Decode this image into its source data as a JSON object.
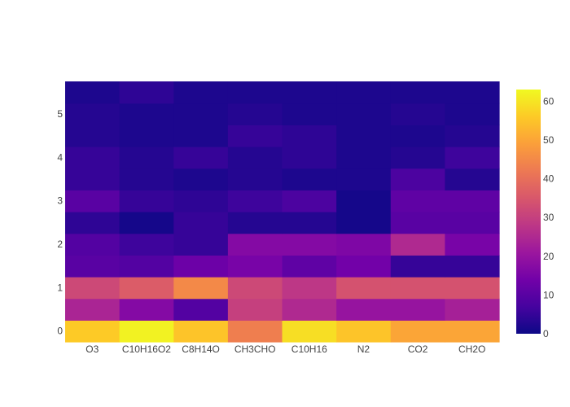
{
  "chart_data": {
    "type": "heatmap",
    "x_categories": [
      "O3",
      "C10H16O2",
      "C8H14O",
      "CH3CHO",
      "C10H16",
      "N2",
      "CO2",
      "CH2O"
    ],
    "y_values": [
      0,
      0.5,
      1,
      1.5,
      2,
      2.5,
      3,
      3.5,
      4,
      4.5,
      5,
      5.5
    ],
    "y_ticks": [
      "0",
      "1",
      "2",
      "3",
      "4",
      "5"
    ],
    "z": [
      [
        56,
        62,
        55,
        43,
        59,
        55,
        50,
        50
      ],
      [
        24,
        17,
        9,
        30,
        25,
        20,
        20,
        23
      ],
      [
        32,
        36,
        45,
        32,
        28,
        34,
        34,
        34
      ],
      [
        10,
        9,
        13,
        15,
        11,
        14,
        5,
        5
      ],
      [
        9,
        6,
        5,
        17,
        17,
        16,
        25,
        15
      ],
      [
        4,
        1,
        5,
        3,
        3,
        1,
        10,
        10
      ],
      [
        10,
        5,
        4,
        6,
        8,
        1,
        11,
        11
      ],
      [
        5,
        3,
        2,
        3,
        2,
        2,
        8,
        3
      ],
      [
        5,
        3,
        5,
        3,
        4,
        2,
        3,
        6
      ],
      [
        3,
        2,
        2,
        5,
        4,
        2,
        2,
        3
      ],
      [
        3,
        2,
        2,
        3,
        2,
        2,
        3,
        2
      ],
      [
        2,
        4,
        2,
        2,
        2,
        2,
        2,
        2
      ]
    ],
    "zmin": 0,
    "zmax": 63,
    "colorbar_ticks": [
      0,
      10,
      20,
      30,
      40,
      50,
      60
    ],
    "colorscale": [
      "#0d0887",
      "#46039f",
      "#7201a8",
      "#9c179e",
      "#bd3786",
      "#d8576b",
      "#ed7953",
      "#fb9f3a",
      "#fdca26",
      "#f0f921"
    ]
  }
}
